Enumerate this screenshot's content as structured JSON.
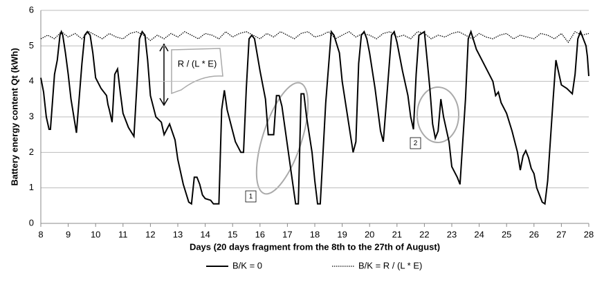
{
  "chart_data": {
    "type": "line",
    "x_label": "Days (20 days fragment from the 8th to the 27th of August)",
    "y_label": "Battery energy content Qt (kWh)",
    "xlim": [
      8,
      28
    ],
    "ylim": [
      0,
      6
    ],
    "xticks": [
      8,
      9,
      10,
      11,
      12,
      13,
      14,
      15,
      16,
      17,
      18,
      19,
      20,
      21,
      22,
      23,
      24,
      25,
      26,
      27,
      28
    ],
    "yticks": [
      0,
      1,
      2,
      3,
      4,
      5,
      6
    ],
    "grid": true,
    "annotations": [
      "R / (L * E)",
      "1",
      "2"
    ],
    "series": [
      {
        "name": "B/K = 0",
        "color": "#000000",
        "style": "solid",
        "x": [
          8,
          8.1,
          8.2,
          8.3,
          8.35,
          8.5,
          8.6,
          8.7,
          8.75,
          8.8,
          8.9,
          9,
          9.1,
          9.3,
          9.5,
          9.6,
          9.7,
          9.8,
          9.9,
          10,
          10.2,
          10.4,
          10.45,
          10.5,
          10.6,
          10.7,
          10.8,
          10.9,
          11,
          11.2,
          11.4,
          11.5,
          11.6,
          11.7,
          11.8,
          11.9,
          12,
          12.2,
          12.4,
          12.5,
          12.7,
          12.9,
          13,
          13.2,
          13.4,
          13.5,
          13.6,
          13.7,
          13.8,
          13.9,
          14,
          14.2,
          14.3,
          14.5,
          14.6,
          14.7,
          14.8,
          15,
          15.1,
          15.3,
          15.4,
          15.5,
          15.6,
          15.7,
          15.8,
          16,
          16.2,
          16.3,
          16.5,
          16.6,
          16.7,
          16.8,
          17,
          17.2,
          17.3,
          17.4,
          17.5,
          17.6,
          17.7,
          17.9,
          18,
          18.1,
          18.2,
          18.4,
          18.6,
          18.7,
          18.9,
          19,
          19.2,
          19.4,
          19.5,
          19.6,
          19.7,
          19.8,
          19.9,
          20,
          20.2,
          20.4,
          20.5,
          20.6,
          20.8,
          20.9,
          21,
          21.2,
          21.4,
          21.5,
          21.6,
          21.7,
          21.8,
          22,
          22.1,
          22.2,
          22.3,
          22.4,
          22.5,
          22.6,
          22.7,
          22.9,
          23,
          23.2,
          23.3,
          23.5,
          23.6,
          23.7,
          23.9,
          24.1,
          24.3,
          24.5,
          24.6,
          24.7,
          24.8,
          25,
          25.2,
          25.4,
          25.5,
          25.6,
          25.7,
          25.8,
          25.9,
          26,
          26.1,
          26.3,
          26.4,
          26.5,
          26.7,
          26.8,
          27,
          27.2,
          27.4,
          27.5,
          27.6,
          27.7,
          27.9,
          27.95,
          28
        ],
        "values": [
          4.1,
          3.7,
          3.0,
          2.65,
          2.65,
          4.2,
          4.6,
          5.3,
          5.4,
          5.3,
          4.8,
          4.2,
          3.5,
          2.55,
          4.5,
          5.3,
          5.4,
          5.3,
          4.8,
          4.1,
          3.8,
          3.6,
          3.35,
          3.2,
          2.85,
          4.2,
          4.35,
          3.7,
          3.1,
          2.7,
          2.45,
          3.8,
          5.2,
          5.4,
          5.3,
          4.6,
          3.6,
          3.0,
          2.85,
          2.5,
          2.8,
          2.35,
          1.8,
          1.1,
          0.6,
          0.55,
          1.3,
          1.3,
          1.1,
          0.8,
          0.7,
          0.65,
          0.55,
          0.55,
          3.2,
          3.75,
          3.2,
          2.6,
          2.3,
          2.0,
          2.0,
          3.8,
          5.2,
          5.3,
          5.2,
          4.3,
          3.5,
          2.5,
          2.5,
          3.6,
          3.6,
          3.3,
          2.2,
          1.1,
          0.55,
          0.55,
          3.65,
          3.65,
          3.0,
          2.0,
          1.2,
          0.55,
          0.55,
          3.4,
          5.4,
          5.3,
          4.8,
          4.0,
          3.0,
          2.0,
          2.3,
          4.5,
          5.3,
          5.4,
          5.2,
          4.8,
          3.8,
          2.6,
          2.3,
          3.3,
          5.3,
          5.4,
          5.1,
          4.3,
          3.6,
          3.0,
          2.65,
          4.2,
          5.3,
          5.4,
          4.6,
          3.8,
          2.8,
          2.4,
          2.6,
          3.5,
          3.0,
          2.3,
          1.6,
          1.3,
          1.1,
          3.5,
          5.2,
          5.4,
          4.9,
          4.6,
          4.3,
          4.0,
          3.6,
          3.7,
          3.4,
          3.1,
          2.6,
          2.0,
          1.5,
          1.9,
          2.05,
          1.85,
          1.55,
          1.4,
          1.0,
          0.6,
          0.55,
          1.2,
          3.5,
          4.6,
          3.9,
          3.8,
          3.65,
          4.2,
          5.2,
          5.4,
          5.0,
          4.7,
          4.15
        ]
      },
      {
        "name": "B/K = R / (L * E)",
        "color": "#000000",
        "style": "dotted",
        "x": [
          8,
          8.25,
          8.5,
          8.75,
          9,
          9.25,
          9.5,
          9.75,
          10,
          10.25,
          10.5,
          10.75,
          11,
          11.25,
          11.5,
          11.75,
          12,
          12.25,
          12.5,
          12.75,
          13,
          13.25,
          13.5,
          13.75,
          14,
          14.25,
          14.5,
          14.75,
          15,
          15.25,
          15.5,
          15.75,
          16,
          16.25,
          16.5,
          16.75,
          17,
          17.25,
          17.5,
          17.75,
          18,
          18.25,
          18.5,
          18.75,
          19,
          19.25,
          19.5,
          19.75,
          20,
          20.25,
          20.5,
          20.75,
          21,
          21.25,
          21.5,
          21.75,
          22,
          22.25,
          22.5,
          22.75,
          23,
          23.25,
          23.5,
          23.75,
          24,
          24.25,
          24.5,
          24.75,
          25,
          25.25,
          25.5,
          25.75,
          26,
          26.25,
          26.5,
          26.75,
          27,
          27.25,
          27.5,
          27.75,
          28
        ],
        "values": [
          5.2,
          5.3,
          5.2,
          5.4,
          5.25,
          5.35,
          5.2,
          5.4,
          5.3,
          5.2,
          5.35,
          5.25,
          5.2,
          5.35,
          5.4,
          5.3,
          5.15,
          5.3,
          5.2,
          5.35,
          5.25,
          5.4,
          5.3,
          5.2,
          5.35,
          5.3,
          5.2,
          5.4,
          5.25,
          5.35,
          5.4,
          5.3,
          5.2,
          5.35,
          5.25,
          5.4,
          5.3,
          5.2,
          5.35,
          5.4,
          5.25,
          5.3,
          5.4,
          5.2,
          5.3,
          5.4,
          5.25,
          5.35,
          5.3,
          5.2,
          5.35,
          5.4,
          5.25,
          5.3,
          5.2,
          5.4,
          5.35,
          5.2,
          5.3,
          5.25,
          5.35,
          5.4,
          5.3,
          5.2,
          5.35,
          5.25,
          5.2,
          5.3,
          5.35,
          5.2,
          5.3,
          5.25,
          5.2,
          5.35,
          5.3,
          5.2,
          5.35,
          5.1,
          5.4,
          5.3,
          5.35
        ]
      }
    ]
  }
}
